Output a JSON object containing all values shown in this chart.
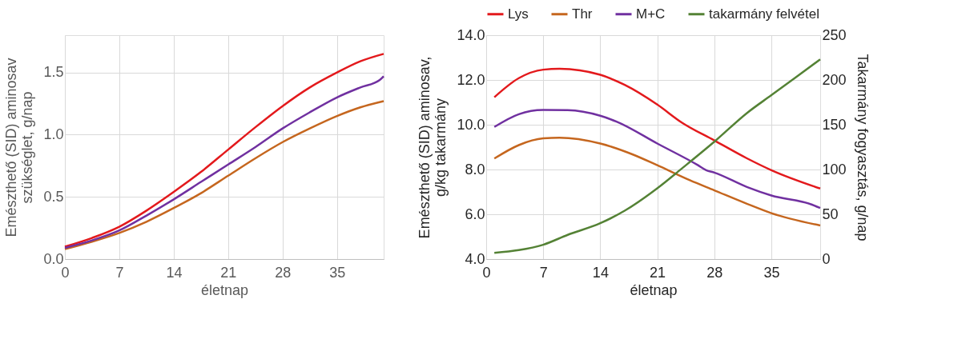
{
  "chart_data": [
    {
      "type": "line",
      "xlabel": "életnap",
      "ylabel": "Emészthető (SID) aminosav\nszükséglet, g/nap",
      "xlim": [
        0,
        41
      ],
      "xticks": [
        0,
        7,
        14,
        21,
        28,
        35
      ],
      "ylim": [
        0,
        1.8
      ],
      "yticks": [
        {
          "value": 0,
          "label": "0.0"
        },
        {
          "value": 0.5,
          "label": "0.5"
        },
        {
          "value": 1,
          "label": "1.0"
        },
        {
          "value": 1.5,
          "label": "1.5"
        }
      ],
      "grid": true,
      "legend": "top",
      "marker": "none",
      "line_style": "solid",
      "series": [
        {
          "name": "Lys",
          "color": "#e3191c",
          "x": [
            0,
            3.5,
            7,
            10.5,
            14,
            17.5,
            21,
            24.5,
            28,
            31.5,
            35,
            38,
            41
          ],
          "values": [
            0.1,
            0.17,
            0.26,
            0.39,
            0.54,
            0.7,
            0.88,
            1.06,
            1.23,
            1.38,
            1.5,
            1.59,
            1.65
          ]
        },
        {
          "name": "Thr",
          "color": "#c5661e",
          "x": [
            0,
            3.5,
            7,
            10.5,
            14,
            17.5,
            21,
            24.5,
            28,
            31.5,
            35,
            38,
            41
          ],
          "values": [
            0.08,
            0.14,
            0.21,
            0.3,
            0.41,
            0.53,
            0.67,
            0.81,
            0.94,
            1.05,
            1.15,
            1.22,
            1.27
          ]
        },
        {
          "name": "M+C",
          "color": "#7030a0",
          "x": [
            0,
            3.5,
            7,
            10.5,
            14,
            17.5,
            21,
            24.5,
            28,
            31.5,
            35,
            38,
            40.5,
            41
          ],
          "values": [
            0.09,
            0.15,
            0.23,
            0.35,
            0.48,
            0.62,
            0.76,
            0.9,
            1.05,
            1.18,
            1.3,
            1.38,
            1.44,
            1.47
          ]
        }
      ]
    },
    {
      "type": "line",
      "xlabel": "életnap",
      "ylabel": "Emészthető (SID) aminosav,\ng/kg takarmány",
      "y2label": "Takarmány fogyasztás, g/nap",
      "xlim": [
        0,
        41
      ],
      "xticks": [
        0,
        7,
        14,
        21,
        28,
        35
      ],
      "ylim": [
        4,
        14
      ],
      "yticks": [
        {
          "value": 4,
          "label": "4.0"
        },
        {
          "value": 6,
          "label": "6.0"
        },
        {
          "value": 8,
          "label": "8.0"
        },
        {
          "value": 10,
          "label": "10.0"
        },
        {
          "value": 12,
          "label": "12.0"
        },
        {
          "value": 14,
          "label": "14.0"
        }
      ],
      "y2lim": [
        0,
        250
      ],
      "y2ticks": [
        0,
        50,
        100,
        150,
        200,
        250
      ],
      "grid": true,
      "legend": "top",
      "marker": "none",
      "line_style": "solid",
      "series": [
        {
          "name": "Lys",
          "color": "#e3191c",
          "x": [
            1,
            4,
            7,
            9,
            14,
            17,
            21,
            24,
            28,
            32,
            35,
            41
          ],
          "values": [
            11.23,
            12.08,
            12.46,
            12.5,
            12.23,
            11.78,
            10.9,
            10.1,
            9.3,
            8.5,
            7.97,
            7.15
          ]
        },
        {
          "name": "Thr",
          "color": "#c5661e",
          "x": [
            1,
            4,
            7,
            9,
            14,
            18,
            21,
            25,
            28,
            32,
            35,
            41
          ],
          "values": [
            8.49,
            9.09,
            9.39,
            9.42,
            9.16,
            8.67,
            8.19,
            7.52,
            7.07,
            6.47,
            6.05,
            5.5
          ]
        },
        {
          "name": "M+C",
          "color": "#7030a0",
          "x": [
            1,
            4,
            7,
            10,
            14,
            16,
            21,
            26,
            27,
            28,
            32,
            35,
            40,
            41
          ],
          "values": [
            9.9,
            10.47,
            10.66,
            10.65,
            10.4,
            10.14,
            9.16,
            8.19,
            7.97,
            7.86,
            7.22,
            6.84,
            6.43,
            6.28
          ]
        },
        {
          "name": "takarmány felvétel",
          "color": "#548235",
          "axis": "y2",
          "x": [
            1,
            4,
            7,
            10,
            14,
            17,
            21,
            24,
            28,
            32,
            35,
            41
          ],
          "values": [
            7,
            10,
            16,
            27,
            40,
            54,
            79,
            101,
            131,
            163,
            183,
            223
          ]
        }
      ]
    }
  ]
}
